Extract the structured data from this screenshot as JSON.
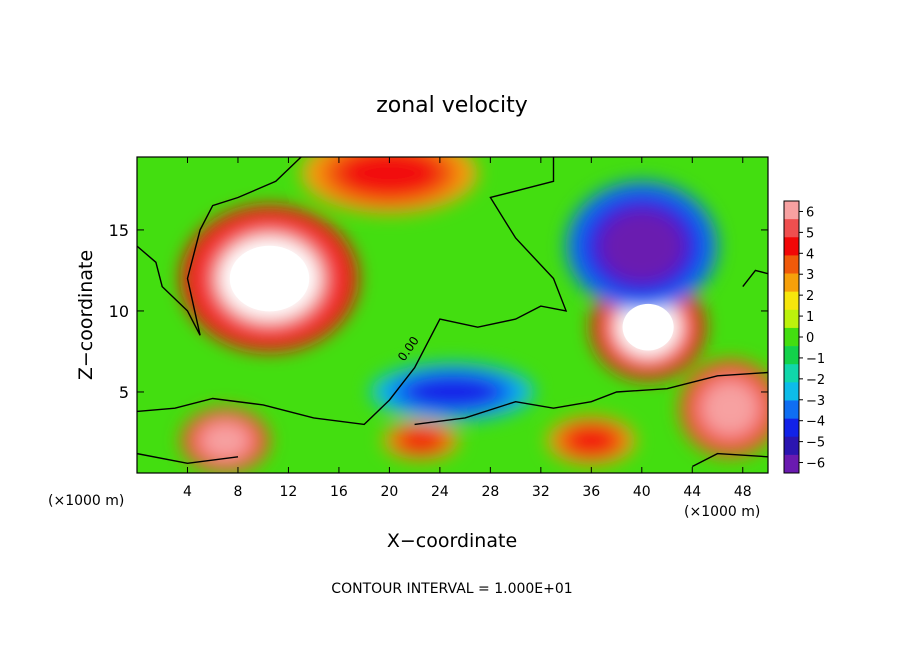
{
  "chart_data": {
    "type": "heatmap",
    "title": "zonal velocity",
    "xlabel": "X−coordinate",
    "ylabel": "Z−coordinate",
    "x_unit_left": "(×1000 m)",
    "x_unit_right": "(×1000 m)",
    "footer": "CONTOUR INTERVAL = 1.000E+01",
    "contour_label": "0.00",
    "xlim": [
      0,
      50
    ],
    "ylim": [
      0,
      19.5
    ],
    "x_ticks": [
      4,
      8,
      12,
      16,
      20,
      24,
      28,
      32,
      36,
      40,
      44,
      48
    ],
    "y_ticks": [
      5,
      10,
      15
    ],
    "colorbar": {
      "ticks": [
        6,
        5,
        4,
        3,
        2,
        1,
        0,
        -1,
        -2,
        -3,
        -4,
        -5,
        -6
      ],
      "vmin": -6.5,
      "vmax": 6.5,
      "over_color": "#ffffff",
      "colors": [
        "#f7a1a1",
        "#ef4f4f",
        "#f20707",
        "#f05a0a",
        "#f6a00a",
        "#f6e60c",
        "#bcf20c",
        "#43de10",
        "#13d24a",
        "#10d7aa",
        "#0dbce9",
        "#0f6ef2",
        "#1222e8",
        "#2b15b0",
        "#6a1ab0"
      ]
    },
    "features": [
      {
        "value": 6.8,
        "x": 10.5,
        "z": 12.0,
        "rx": 7.0,
        "rz": 4.5
      },
      {
        "value": 6.8,
        "x": 40.5,
        "z": 9.0,
        "rx": 4.5,
        "rz": 3.2
      },
      {
        "value": -5.8,
        "x": 40.0,
        "z": 14.0,
        "rx": 6.0,
        "rz": 4.0
      },
      {
        "value": 4.5,
        "x": 20.0,
        "z": 18.5,
        "rx": 7.0,
        "rz": 2.5
      },
      {
        "value": 6.5,
        "x": 7.0,
        "z": 2.0,
        "rx": 3.5,
        "rz": 2.0
      },
      {
        "value": 6.5,
        "x": 47.0,
        "z": 4.0,
        "rx": 4.0,
        "rz": 3.0
      },
      {
        "value": -4.0,
        "x": 25.0,
        "z": 5.0,
        "rx": 6.5,
        "rz": 1.8
      },
      {
        "value": 4.0,
        "x": 22.5,
        "z": 2.0,
        "rx": 3.0,
        "rz": 1.2
      },
      {
        "value": 4.0,
        "x": 36.0,
        "z": 2.0,
        "rx": 3.5,
        "rz": 1.5
      }
    ]
  }
}
